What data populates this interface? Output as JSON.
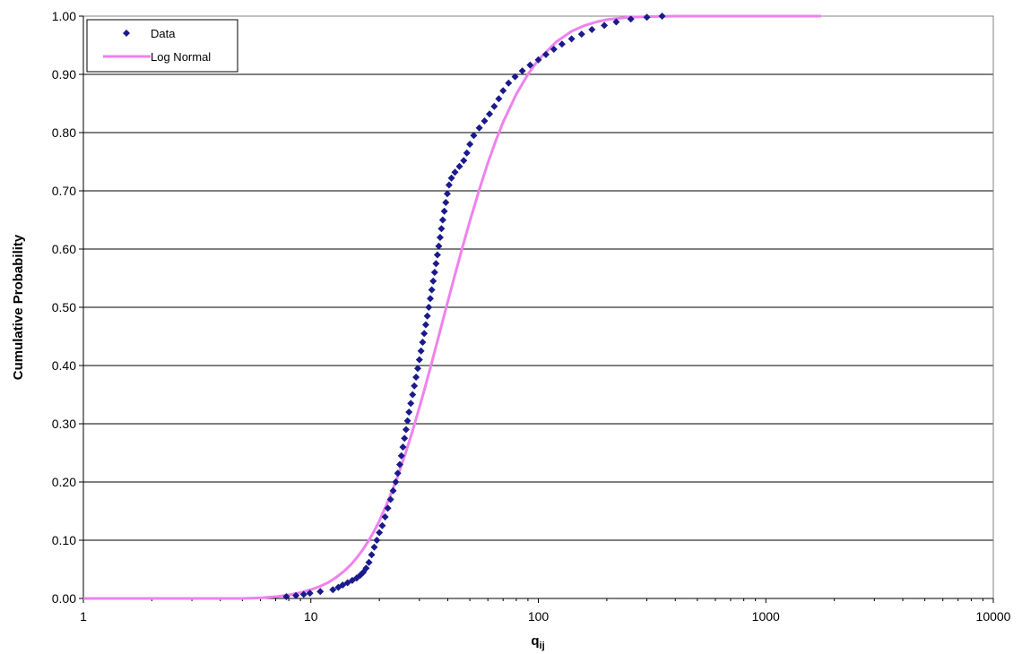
{
  "colors": {
    "data_series": "#1a1a8c",
    "lognormal_series": "#ee82ee",
    "grid": "#000000",
    "background": "#ffffff"
  },
  "chart_data": {
    "type": "scatter",
    "title": "",
    "xlabel": "q",
    "xlabel_subscript": "ij",
    "ylabel": "Cumulative Probability",
    "x_scale": "log",
    "xlim": [
      1,
      10000
    ],
    "ylim": [
      0,
      1
    ],
    "x_ticks": [
      1,
      10,
      100,
      1000,
      10000
    ],
    "x_tick_labels": [
      "1",
      "10",
      "100",
      "1000",
      "10000"
    ],
    "y_ticks": [
      0,
      0.1,
      0.2,
      0.3,
      0.4,
      0.5,
      0.6,
      0.7,
      0.8,
      0.9,
      1.0
    ],
    "y_tick_labels": [
      "0.00",
      "0.10",
      "0.20",
      "0.30",
      "0.40",
      "0.50",
      "0.60",
      "0.70",
      "0.80",
      "0.90",
      "1.00"
    ],
    "grid": "horizontal",
    "legend_position": "top-left",
    "series": [
      {
        "name": "Data",
        "kind": "markers",
        "marker": "diamond",
        "points": [
          [
            7.8,
            0.003
          ],
          [
            8.6,
            0.005
          ],
          [
            9.3,
            0.007
          ],
          [
            9.9,
            0.009
          ],
          [
            11.0,
            0.012
          ],
          [
            12.5,
            0.015
          ],
          [
            13.2,
            0.019
          ],
          [
            13.8,
            0.023
          ],
          [
            14.5,
            0.027
          ],
          [
            15.2,
            0.031
          ],
          [
            15.9,
            0.035
          ],
          [
            16.5,
            0.04
          ],
          [
            17.0,
            0.045
          ],
          [
            17.5,
            0.052
          ],
          [
            18.0,
            0.062
          ],
          [
            18.5,
            0.075
          ],
          [
            19.0,
            0.088
          ],
          [
            19.5,
            0.1
          ],
          [
            20.0,
            0.113
          ],
          [
            20.6,
            0.125
          ],
          [
            21.2,
            0.14
          ],
          [
            21.8,
            0.155
          ],
          [
            22.4,
            0.17
          ],
          [
            23.0,
            0.185
          ],
          [
            23.6,
            0.2
          ],
          [
            24.1,
            0.215
          ],
          [
            24.6,
            0.23
          ],
          [
            25.0,
            0.245
          ],
          [
            25.4,
            0.26
          ],
          [
            25.8,
            0.275
          ],
          [
            26.2,
            0.29
          ],
          [
            26.6,
            0.305
          ],
          [
            27.0,
            0.32
          ],
          [
            27.5,
            0.335
          ],
          [
            28.0,
            0.35
          ],
          [
            28.5,
            0.365
          ],
          [
            29.0,
            0.38
          ],
          [
            29.5,
            0.395
          ],
          [
            30.0,
            0.41
          ],
          [
            30.5,
            0.425
          ],
          [
            31.0,
            0.44
          ],
          [
            31.5,
            0.455
          ],
          [
            32.0,
            0.47
          ],
          [
            32.5,
            0.485
          ],
          [
            33.0,
            0.5
          ],
          [
            33.5,
            0.515
          ],
          [
            34.0,
            0.53
          ],
          [
            34.5,
            0.545
          ],
          [
            35.0,
            0.56
          ],
          [
            35.5,
            0.575
          ],
          [
            36.0,
            0.59
          ],
          [
            36.5,
            0.605
          ],
          [
            37.0,
            0.62
          ],
          [
            37.5,
            0.635
          ],
          [
            38.0,
            0.65
          ],
          [
            38.6,
            0.665
          ],
          [
            39.2,
            0.68
          ],
          [
            39.8,
            0.695
          ],
          [
            40.5,
            0.71
          ],
          [
            41.5,
            0.722
          ],
          [
            43.0,
            0.732
          ],
          [
            45.0,
            0.742
          ],
          [
            47.0,
            0.752
          ],
          [
            48.5,
            0.765
          ],
          [
            50.0,
            0.78
          ],
          [
            52.0,
            0.795
          ],
          [
            55.0,
            0.808
          ],
          [
            58.0,
            0.82
          ],
          [
            61.0,
            0.832
          ],
          [
            64.0,
            0.845
          ],
          [
            67.0,
            0.858
          ],
          [
            70.0,
            0.872
          ],
          [
            74.0,
            0.885
          ],
          [
            79.0,
            0.896
          ],
          [
            85.0,
            0.906
          ],
          [
            92.0,
            0.916
          ],
          [
            100.0,
            0.925
          ],
          [
            108.0,
            0.934
          ],
          [
            117.0,
            0.943
          ],
          [
            127.0,
            0.952
          ],
          [
            140.0,
            0.961
          ],
          [
            155.0,
            0.969
          ],
          [
            172.0,
            0.977
          ],
          [
            195.0,
            0.984
          ],
          [
            220.0,
            0.99
          ],
          [
            255.0,
            0.995
          ],
          [
            300.0,
            0.998
          ],
          [
            350.0,
            1.0
          ]
        ]
      },
      {
        "name": "Log Normal",
        "kind": "line",
        "points": [
          [
            1,
            0.0
          ],
          [
            3,
            0.0
          ],
          [
            5.0,
            0.0
          ],
          [
            6.0,
            0.001
          ],
          [
            7.0,
            0.003
          ],
          [
            8.0,
            0.006
          ],
          [
            9.0,
            0.01
          ],
          [
            10.0,
            0.015
          ],
          [
            11.0,
            0.021
          ],
          [
            12.0,
            0.028
          ],
          [
            13.0,
            0.037
          ],
          [
            14.0,
            0.047
          ],
          [
            15.0,
            0.058
          ],
          [
            16.0,
            0.071
          ],
          [
            17.0,
            0.085
          ],
          [
            18.0,
            0.1
          ],
          [
            19.0,
            0.116
          ],
          [
            20.0,
            0.133
          ],
          [
            22.0,
            0.17
          ],
          [
            24.0,
            0.208
          ],
          [
            26.0,
            0.248
          ],
          [
            28.0,
            0.288
          ],
          [
            30.0,
            0.328
          ],
          [
            32.0,
            0.367
          ],
          [
            34.0,
            0.405
          ],
          [
            36.0,
            0.442
          ],
          [
            38.0,
            0.477
          ],
          [
            40.0,
            0.51
          ],
          [
            43.0,
            0.556
          ],
          [
            46.0,
            0.598
          ],
          [
            50.0,
            0.648
          ],
          [
            55.0,
            0.702
          ],
          [
            60.0,
            0.748
          ],
          [
            65.0,
            0.786
          ],
          [
            70.0,
            0.818
          ],
          [
            80.0,
            0.866
          ],
          [
            90.0,
            0.9
          ],
          [
            100.0,
            0.925
          ],
          [
            120.0,
            0.956
          ],
          [
            140.0,
            0.974
          ],
          [
            160.0,
            0.984
          ],
          [
            180.0,
            0.99
          ],
          [
            200.0,
            0.994
          ],
          [
            250.0,
            0.998
          ],
          [
            300.0,
            0.999
          ],
          [
            400.0,
            1.0
          ],
          [
            1000.0,
            1.0
          ],
          [
            1750.0,
            1.0
          ]
        ]
      }
    ]
  }
}
